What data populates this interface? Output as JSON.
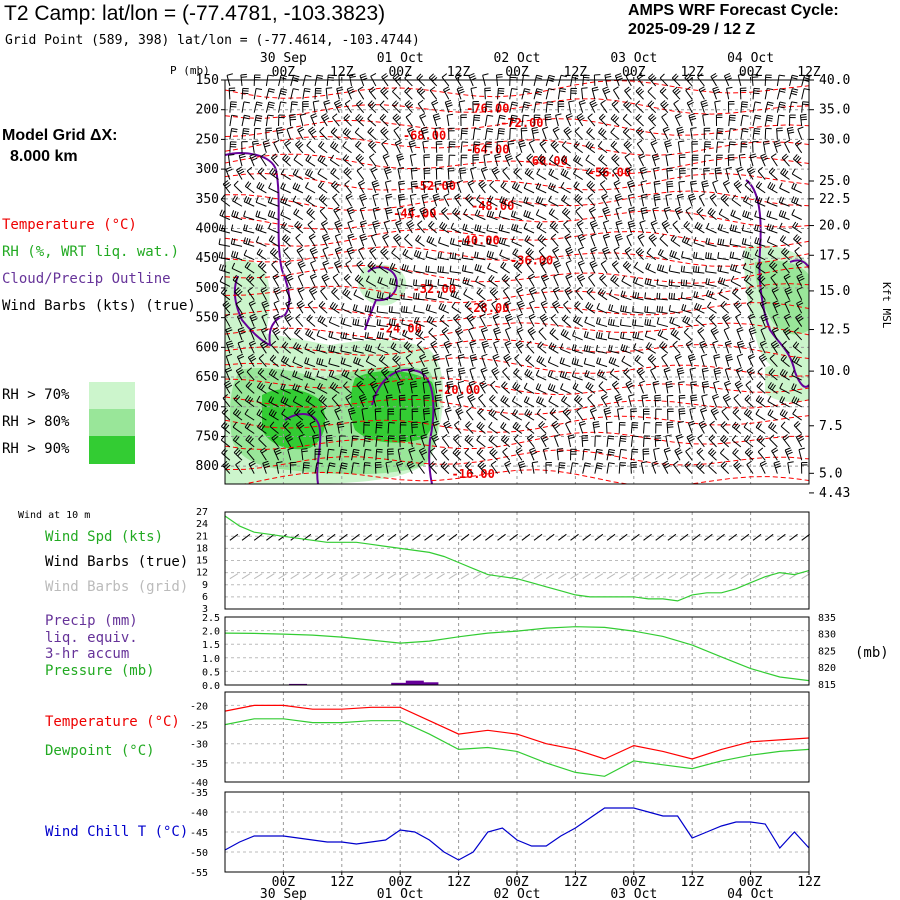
{
  "header": {
    "title": "T2 Camp:  lat/lon = (-77.4781, -103.3823)",
    "grid_point": "Grid Point (589, 398) lat/lon = (-77.4614, -103.4744)",
    "cycle_label": "AMPS WRF Forecast Cycle:",
    "cycle_value": "2025-09-29 / 12  Z"
  },
  "model_grid": {
    "label": "Model Grid ΔX:",
    "value": "8.000 km"
  },
  "legend": {
    "temperature": "Temperature (°C)",
    "rh": "RH (%, WRT liq. wat.)",
    "cloud": "Cloud/Precip Outline",
    "wind": "Wind Barbs (kts) (true)",
    "rh70": "RH > 70%",
    "rh80": "RH > 80%",
    "rh90": "RH > 90%"
  },
  "colors": {
    "temperature": "#ff0000",
    "rh": "#33cc33",
    "cloud": "#660099",
    "wind": "#000000",
    "rh70": "#ccf5cc",
    "rh80": "#99e699",
    "rh90": "#33cc33",
    "grid": "#999999",
    "windchill": "#0000cc",
    "barbs_grid": "#bbbbbb"
  },
  "time_axis": {
    "ticks": [
      "00Z",
      "12Z",
      "00Z",
      "12Z",
      "00Z",
      "12Z",
      "00Z",
      "12Z",
      "00Z",
      "12Z"
    ],
    "hours": [
      12,
      24,
      36,
      48,
      60,
      72,
      84,
      96,
      108,
      120
    ],
    "date_labels": [
      "30 Sep",
      "01 Oct",
      "02 Oct",
      "03 Oct",
      "04 Oct"
    ],
    "date_hours": [
      12,
      36,
      60,
      84,
      108
    ],
    "range_hours": [
      0,
      120
    ]
  },
  "chart_data": [
    {
      "type": "heatmap",
      "name": "vertical-profile",
      "ylabel": "P (mb)",
      "ylabel_right": "Kft MSL",
      "pressure_ticks": [
        150,
        200,
        250,
        300,
        350,
        400,
        450,
        500,
        550,
        600,
        650,
        700,
        750,
        800
      ],
      "ylim": [
        150,
        830
      ],
      "height_ticks": [
        {
          "p": 150,
          "label": "40.0"
        },
        {
          "p": 200,
          "label": "35.0"
        },
        {
          "p": 250,
          "label": "30.0"
        },
        {
          "p": 320,
          "label": "25.0"
        },
        {
          "p": 350,
          "label": "22.5"
        },
        {
          "p": 395,
          "label": "20.0"
        },
        {
          "p": 445,
          "label": "17.5"
        },
        {
          "p": 505,
          "label": "15.0"
        },
        {
          "p": 570,
          "label": "12.5"
        },
        {
          "p": 640,
          "label": "10.0"
        },
        {
          "p": 732,
          "label": "7.5"
        },
        {
          "p": 812,
          "label": "5.0"
        },
        {
          "p": 845,
          "label": "4.43"
        }
      ],
      "temperature_labels": [
        {
          "hour": 54,
          "p": 198,
          "label": "-76.00"
        },
        {
          "hour": 61,
          "p": 222,
          "label": "-72.00"
        },
        {
          "hour": 41,
          "p": 243,
          "label": "-68.00"
        },
        {
          "hour": 54,
          "p": 267,
          "label": "-64.00"
        },
        {
          "hour": 66,
          "p": 286,
          "label": "-60.00"
        },
        {
          "hour": 79,
          "p": 306,
          "label": "-56.00"
        },
        {
          "hour": 43,
          "p": 328,
          "label": "-52.00"
        },
        {
          "hour": 55,
          "p": 362,
          "label": "-48.00"
        },
        {
          "hour": 39,
          "p": 375,
          "label": "-44.00"
        },
        {
          "hour": 52,
          "p": 420,
          "label": "-40.00"
        },
        {
          "hour": 63,
          "p": 454,
          "label": "-36.00"
        },
        {
          "hour": 43,
          "p": 502,
          "label": "-32.00"
        },
        {
          "hour": 54,
          "p": 534,
          "label": "-28.00"
        },
        {
          "hour": 36,
          "p": 568,
          "label": "-24.00"
        },
        {
          "hour": 48,
          "p": 672,
          "label": "-20.00"
        },
        {
          "hour": 51,
          "p": 813,
          "label": "-16.00"
        }
      ]
    },
    {
      "type": "line",
      "name": "wind-speed",
      "ylabel": "Wind Spd (kts)",
      "caption": "Wind at 10 m",
      "label_barbs_true": "Wind Barbs (true)",
      "label_barbs_grid": "Wind Barbs (grid)",
      "yticks": [
        27,
        24,
        21,
        18,
        15,
        12,
        9,
        6,
        3
      ],
      "ylim": [
        3,
        27
      ],
      "x": [
        0,
        3,
        6,
        9,
        12,
        15,
        18,
        21,
        24,
        27,
        30,
        33,
        36,
        39,
        42,
        45,
        48,
        51,
        54,
        57,
        60,
        63,
        66,
        69,
        72,
        75,
        78,
        81,
        84,
        87,
        90,
        93,
        96,
        99,
        102,
        105,
        108,
        111,
        114,
        117,
        120
      ],
      "values": [
        26,
        23.5,
        22,
        21.5,
        21,
        20.5,
        20,
        19.5,
        19.5,
        19.5,
        19,
        18.5,
        18,
        17.5,
        17,
        16,
        14.5,
        13,
        11.5,
        11,
        10.5,
        9.5,
        8.5,
        7.5,
        6.5,
        6,
        6,
        6,
        6,
        5.5,
        5.5,
        5,
        6.5,
        7,
        7,
        8,
        9.5,
        11,
        12,
        11.5,
        12.5
      ]
    },
    {
      "type": "line",
      "name": "precip-pressure",
      "label_precip": "Precip (mm)",
      "label_liq": "liq. equiv.",
      "label_accum": "3-hr accum",
      "label_pressure": "Pressure (mb)",
      "units_right": "(mb)",
      "yticks_left": [
        2.5,
        2.0,
        1.5,
        1.0,
        0.5,
        0.0
      ],
      "yticks_left_labels": [
        "2.5",
        "2.0",
        "1.5",
        "1.0",
        "0.5",
        "0.0"
      ],
      "yticks_right": [
        835,
        830,
        825,
        820,
        815
      ],
      "ylim_precip": [
        0,
        2.5
      ],
      "ylim_pressure": [
        814.7,
        835
      ],
      "x": [
        0,
        6,
        12,
        18,
        24,
        30,
        36,
        42,
        48,
        54,
        60,
        66,
        72,
        78,
        84,
        90,
        96,
        102,
        108,
        114,
        120
      ],
      "pressure": [
        830.2,
        830.1,
        829.9,
        829.6,
        829,
        828.1,
        827.2,
        827.8,
        829.1,
        830.2,
        830.8,
        831.7,
        832.1,
        831.9,
        830.8,
        829.2,
        826.6,
        823.1,
        819.6,
        817.1,
        816
      ],
      "precip_x": [
        15,
        36,
        39,
        42
      ],
      "precip": [
        0.04,
        0.08,
        0.16,
        0.1
      ]
    },
    {
      "type": "line",
      "name": "temperature-dewpoint",
      "label_temperature": "Temperature (°C)",
      "label_dewpoint": "Dewpoint (°C)",
      "yticks": [
        -20,
        -25,
        -30,
        -35,
        -40
      ],
      "ylim": [
        -40,
        -16.5
      ],
      "x": [
        0,
        6,
        12,
        18,
        24,
        30,
        36,
        42,
        48,
        54,
        60,
        66,
        72,
        78,
        84,
        90,
        96,
        102,
        108,
        114,
        120
      ],
      "temperature": [
        -21.5,
        -20,
        -20,
        -21,
        -21,
        -20.5,
        -20.5,
        -24,
        -27.5,
        -26.5,
        -27.5,
        -30,
        -31.5,
        -34,
        -30.5,
        -32,
        -34,
        -31.5,
        -29.5,
        -29,
        -28.5
      ],
      "dewpoint": [
        -25,
        -23.5,
        -23.5,
        -24.5,
        -24.5,
        -24,
        -24,
        -27.5,
        -31.5,
        -31,
        -32,
        -35,
        -37.5,
        -38.5,
        -34.5,
        -35.5,
        -36.5,
        -34.5,
        -33,
        -32,
        -31.5
      ]
    },
    {
      "type": "line",
      "name": "wind-chill",
      "label": "Wind Chill T (°C)",
      "yticks": [
        -35,
        -40,
        -45,
        -50,
        -55
      ],
      "ylim": [
        -55,
        -35
      ],
      "x": [
        0,
        3,
        6,
        9,
        12,
        15,
        18,
        21,
        24,
        27,
        30,
        33,
        36,
        39,
        42,
        45,
        48,
        51,
        54,
        57,
        60,
        63,
        66,
        69,
        72,
        75,
        78,
        81,
        84,
        87,
        90,
        93,
        96,
        99,
        102,
        105,
        108,
        111,
        114,
        117,
        120
      ],
      "values": [
        -49.5,
        -47.5,
        -46,
        -46,
        -46,
        -46.5,
        -47,
        -47.5,
        -47.5,
        -48,
        -47.5,
        -47,
        -44.5,
        -45,
        -47,
        -50,
        -52,
        -50,
        -45,
        -44,
        -47,
        -48.5,
        -48.5,
        -46,
        -44,
        -41.5,
        -39,
        -39,
        -39,
        -40,
        -41,
        -41,
        -46.5,
        -45,
        -43.5,
        -42.5,
        -42.5,
        -43,
        -49,
        -45,
        -49
      ]
    }
  ]
}
